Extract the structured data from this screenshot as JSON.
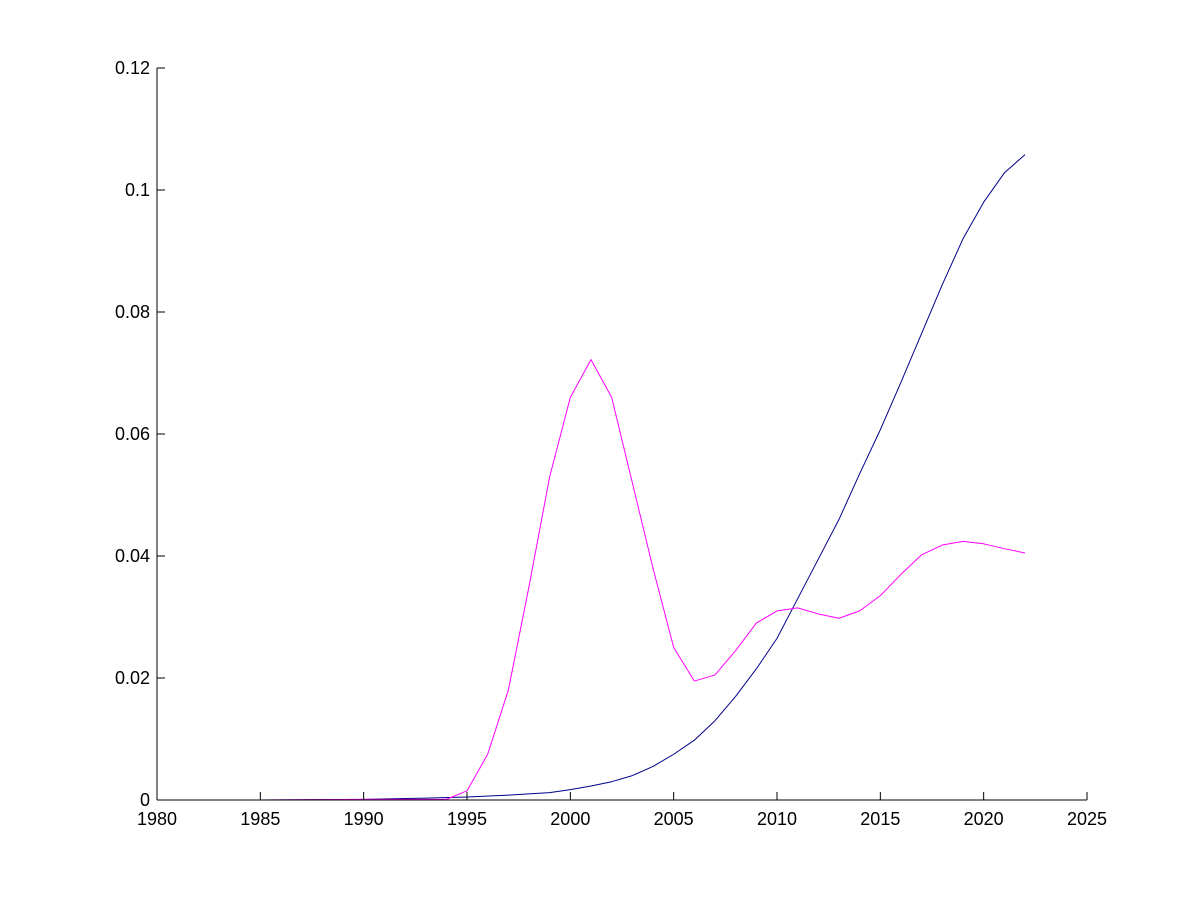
{
  "chart_data": {
    "type": "line",
    "title": "",
    "xlabel": "",
    "ylabel": "",
    "xlim": [
      1980,
      2025
    ],
    "ylim": [
      0,
      0.12
    ],
    "xticks": [
      "1980",
      "1985",
      "1990",
      "1995",
      "2000",
      "2005",
      "2010",
      "2015",
      "2020",
      "2025"
    ],
    "yticks": [
      "0",
      "0.02",
      "0.04",
      "0.06",
      "0.08",
      "0.1",
      "0.12"
    ],
    "grid": false,
    "legend": "none",
    "series": [
      {
        "color": "#00008b",
        "x": [
          1980,
          1985,
          1990,
          1993,
          1995,
          1997,
          1999,
          2000,
          2001,
          2002,
          2003,
          2004,
          2005,
          2006,
          2007,
          2008,
          2009,
          2010,
          2011,
          2012,
          2013,
          2014,
          2015,
          2016,
          2017,
          2018,
          2019,
          2020,
          2021,
          2022
        ],
        "y": [
          0,
          0,
          0.0001,
          0.0003,
          0.0005,
          0.0008,
          0.0012,
          0.0017,
          0.0023,
          0.003,
          0.004,
          0.0055,
          0.0075,
          0.0098,
          0.013,
          0.017,
          0.0215,
          0.0265,
          0.033,
          0.0395,
          0.046,
          0.0535,
          0.0607,
          0.0685,
          0.0765,
          0.0845,
          0.092,
          0.098,
          0.1028,
          0.1058
        ]
      },
      {
        "color": "#ff00ff",
        "x": [
          1980,
          1985,
          1990,
          1994,
          1995,
          1996,
          1997,
          1998,
          1999,
          2000,
          2001,
          2002,
          2003,
          2004,
          2005,
          2006,
          2007,
          2008,
          2009,
          2010,
          2011,
          2012,
          2013,
          2014,
          2015,
          2016,
          2017,
          2018,
          2019,
          2020,
          2021,
          2022
        ],
        "y": [
          0,
          0,
          0.0001,
          0.0001,
          0.0015,
          0.0075,
          0.018,
          0.035,
          0.053,
          0.066,
          0.0722,
          0.066,
          0.052,
          0.038,
          0.025,
          0.0195,
          0.0205,
          0.0245,
          0.029,
          0.031,
          0.0315,
          0.0305,
          0.0298,
          0.031,
          0.0335,
          0.037,
          0.0402,
          0.0418,
          0.0424,
          0.042,
          0.0412,
          0.0405
        ]
      }
    ]
  }
}
